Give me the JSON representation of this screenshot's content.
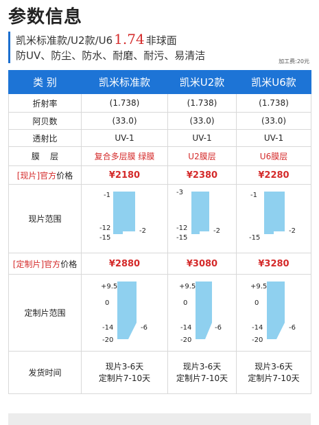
{
  "page_title": "参数信息",
  "subtitle": {
    "prefix": "凯米标准款/U2款/U6",
    "highlight": "1.74",
    "suffix": "非球面",
    "features": "防UV、防尘、防水、耐磨、耐污、易清洁"
  },
  "fee": "加工费:20元",
  "table": {
    "headers": [
      "类 别",
      "凯米标准款",
      "凯米U2款",
      "凯米U6款"
    ],
    "rows": {
      "refractive": {
        "label": "折射率",
        "values": [
          "(1.738)",
          "(1.738)",
          "(1.738)"
        ]
      },
      "abbe": {
        "label": "阿贝数",
        "values": [
          "(33.0)",
          "(33.0)",
          "(33.0)"
        ]
      },
      "transmission": {
        "label": "透射比",
        "values": [
          "UV-1",
          "UV-1",
          "UV-1"
        ]
      },
      "coating": {
        "label": "膜    层",
        "values": [
          "复合多层膜 绿膜",
          "U2膜层",
          "U6膜层"
        ]
      },
      "stock_price": {
        "label_bracket": "[现片]",
        "label_official": "官方",
        "label_rest": "价格",
        "values": [
          "¥2180",
          "¥2380",
          "¥2280"
        ]
      },
      "stock_range": {
        "label": "现片范围",
        "columns": [
          {
            "top": "-1",
            "mid": "-12",
            "bottom": "-15",
            "side": "-2"
          },
          {
            "top": "-3",
            "mid": "-12",
            "bottom": "-15",
            "side": "-2"
          },
          {
            "top": "-1",
            "mid": "",
            "bottom": "-15",
            "side": "-2"
          }
        ]
      },
      "custom_price": {
        "label_bracket": "[定制片]",
        "label_official": "官方",
        "label_rest": "价格",
        "values": [
          "¥2880",
          "¥3080",
          "¥3280"
        ]
      },
      "custom_range": {
        "label": "定制片范围",
        "columns": [
          {
            "t1": "+9.5",
            "t2": "0",
            "t3": "-14",
            "t4": "-20",
            "side": "-6"
          },
          {
            "t1": "+9.5",
            "t2": "0",
            "t3": "-14",
            "t4": "-20",
            "side": "-6"
          },
          {
            "t1": "+9.5",
            "t2": "0",
            "t3": "-14",
            "t4": "-20",
            "side": "-6"
          }
        ]
      },
      "delivery": {
        "label": "发货时间",
        "values": [
          {
            "line1": "现片3-6天",
            "line2": "定制片7-10天"
          },
          {
            "line1": "现片3-6天",
            "line2": "定制片7-10天"
          },
          {
            "line1": "现片3-6天",
            "line2": "定制片7-10天"
          }
        ]
      }
    }
  },
  "accent_color": "#1d74d6",
  "price_color": "#d42a2a",
  "range_fill": "#8fd0ef"
}
